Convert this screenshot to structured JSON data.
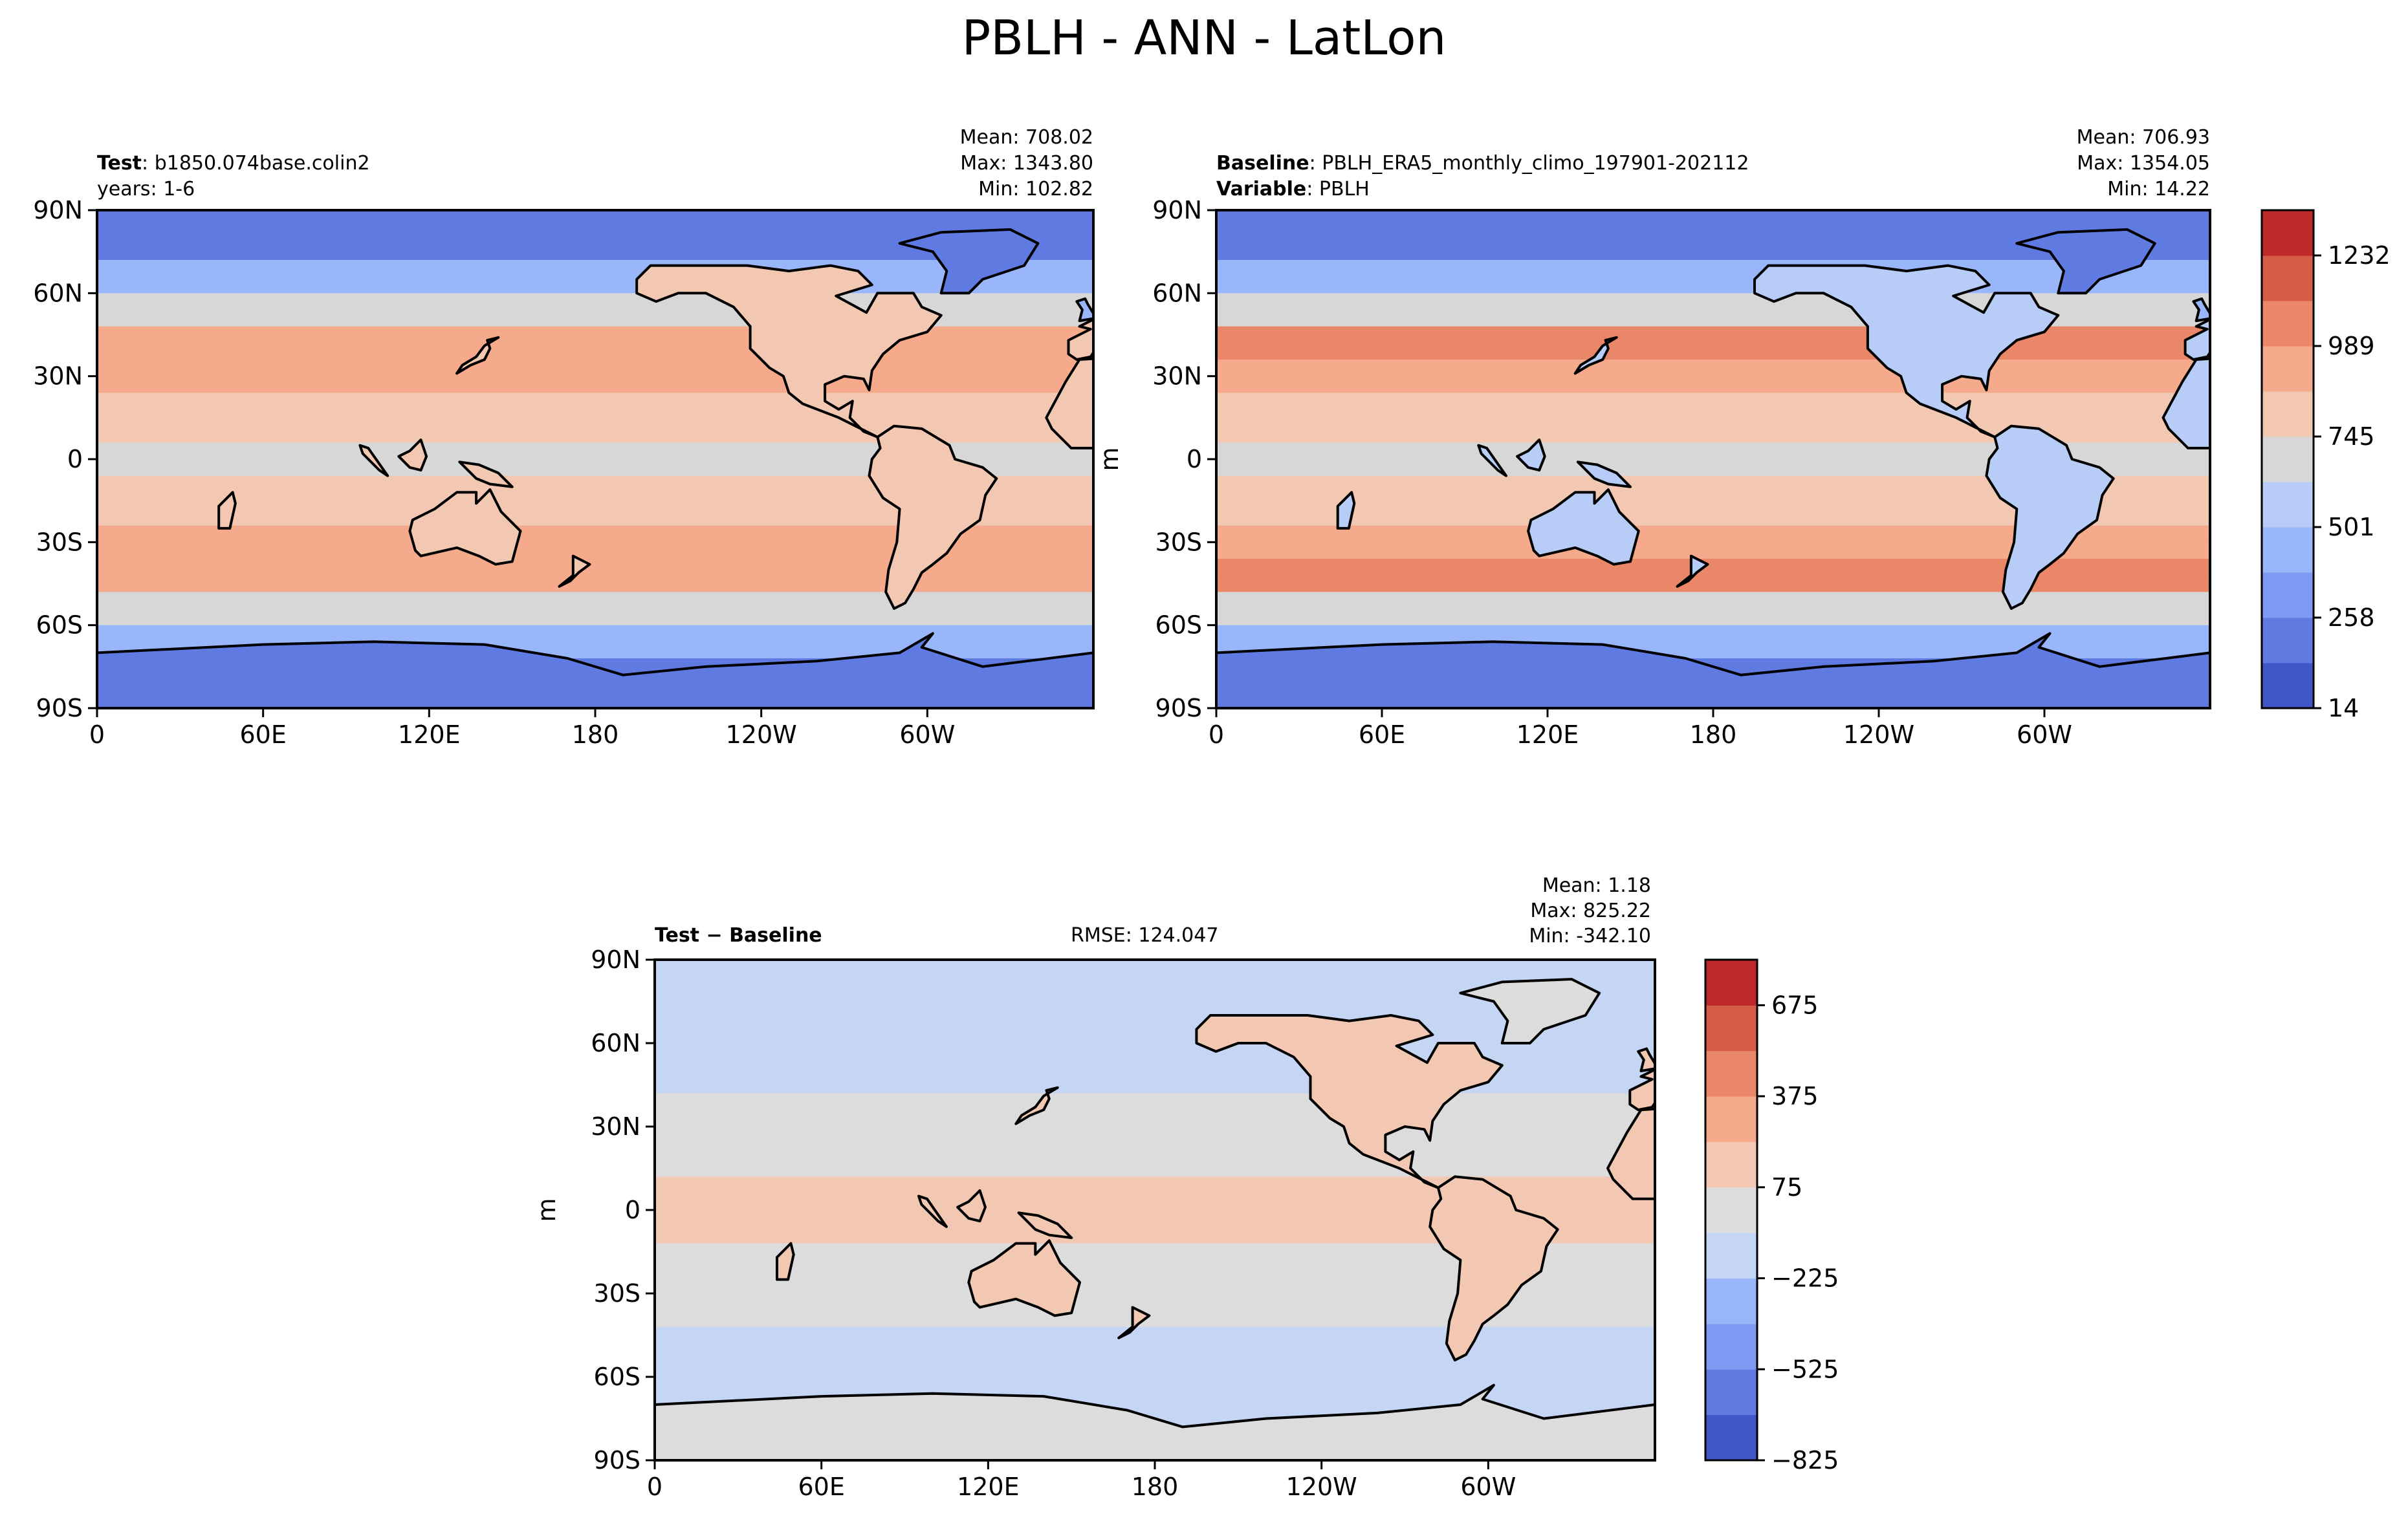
{
  "title": "PBLH - ANN - LatLon",
  "panels": {
    "test": {
      "name_label": "Test",
      "name_value": "b1850.074base.colin2",
      "line2": "years: 1-6",
      "stats": [
        "Mean: 708.02",
        "Max: 1343.80",
        "Min: 102.82"
      ]
    },
    "baseline": {
      "name_label": "Baseline",
      "name_value": "PBLH_ERA5_monthly_climo_197901-202112",
      "var_label": "Variable",
      "var_value": "PBLH",
      "stats": [
        "Mean: 706.93",
        "Max: 1354.05",
        "Min: 14.22"
      ]
    },
    "diff": {
      "name_label": "Test",
      "name_sep": " − ",
      "name_label2": "Baseline",
      "rmse": "RMSE: 124.047",
      "stats": [
        "Mean:  1.18",
        "Max: 825.22",
        "Min: -342.10"
      ]
    }
  },
  "ylabel_units": "m",
  "colors": {
    "ocean": "#dcdcdc",
    "coast": "#000000"
  },
  "chart_data": [
    {
      "type": "heatmap",
      "panel": "test",
      "subtitle": "Test: b1850.074base.colin2 years: 1-6",
      "xlabel": "",
      "ylabel": "",
      "xticks": [
        "0",
        "60E",
        "120E",
        "180",
        "120W",
        "60W"
      ],
      "yticks": [
        "90S",
        "60S",
        "30S",
        "0",
        "30N",
        "60N",
        "90N"
      ],
      "xlim": [
        0,
        360
      ],
      "ylim": [
        -90,
        90
      ],
      "stats": {
        "mean": 708.02,
        "max": 1343.8,
        "min": 102.82
      },
      "colorbar": "shared_with_baseline"
    },
    {
      "type": "heatmap",
      "panel": "baseline",
      "subtitle": "Baseline: PBLH_ERA5_monthly_climo_197901-202112 Variable: PBLH",
      "xlabel": "",
      "ylabel": "m",
      "xticks": [
        "0",
        "60E",
        "120E",
        "180",
        "120W",
        "60W"
      ],
      "yticks": [
        "90S",
        "60S",
        "30S",
        "0",
        "30N",
        "60N",
        "90N"
      ],
      "xlim": [
        0,
        360
      ],
      "ylim": [
        -90,
        90
      ],
      "stats": {
        "mean": 706.93,
        "max": 1354.05,
        "min": 14.22
      },
      "colorbar": {
        "levels": [
          14,
          135,
          258,
          379,
          501,
          623,
          745,
          867,
          989,
          1110,
          1232,
          1354
        ],
        "ticks": [
          "14",
          "258",
          "501",
          "745",
          "989",
          "1232"
        ],
        "colors": [
          "#3f55c8",
          "#5f7be2",
          "#7d9bf2",
          "#9ab6fb",
          "#b7cdf7",
          "#d7d7d7",
          "#f3c8b3",
          "#f4aa8b",
          "#ea8768",
          "#d65c47",
          "#be2a2c"
        ]
      }
    },
    {
      "type": "heatmap",
      "panel": "diff",
      "subtitle": "Test − Baseline",
      "xlabel": "",
      "ylabel": "m",
      "xticks": [
        "0",
        "60E",
        "120E",
        "180",
        "120W",
        "60W"
      ],
      "yticks": [
        "90S",
        "60S",
        "30S",
        "0",
        "30N",
        "60N",
        "90N"
      ],
      "xlim": [
        0,
        360
      ],
      "ylim": [
        -90,
        90
      ],
      "rmse": 124.047,
      "stats": {
        "mean": 1.18,
        "max": 825.22,
        "min": -342.1
      },
      "colorbar": {
        "levels": [
          -825,
          -675,
          -525,
          -375,
          -225,
          -75,
          75,
          225,
          375,
          525,
          675,
          825
        ],
        "ticks": [
          "−825",
          "−525",
          "−225",
          "75",
          "375",
          "675"
        ],
        "colors": [
          "#3f55c8",
          "#5f7be2",
          "#7d9bf2",
          "#9ab6fb",
          "#c5d5f4",
          "#dcdcdc",
          "#f3c8b3",
          "#f4aa8b",
          "#ea8768",
          "#d65c47",
          "#be2a2c"
        ]
      }
    }
  ]
}
